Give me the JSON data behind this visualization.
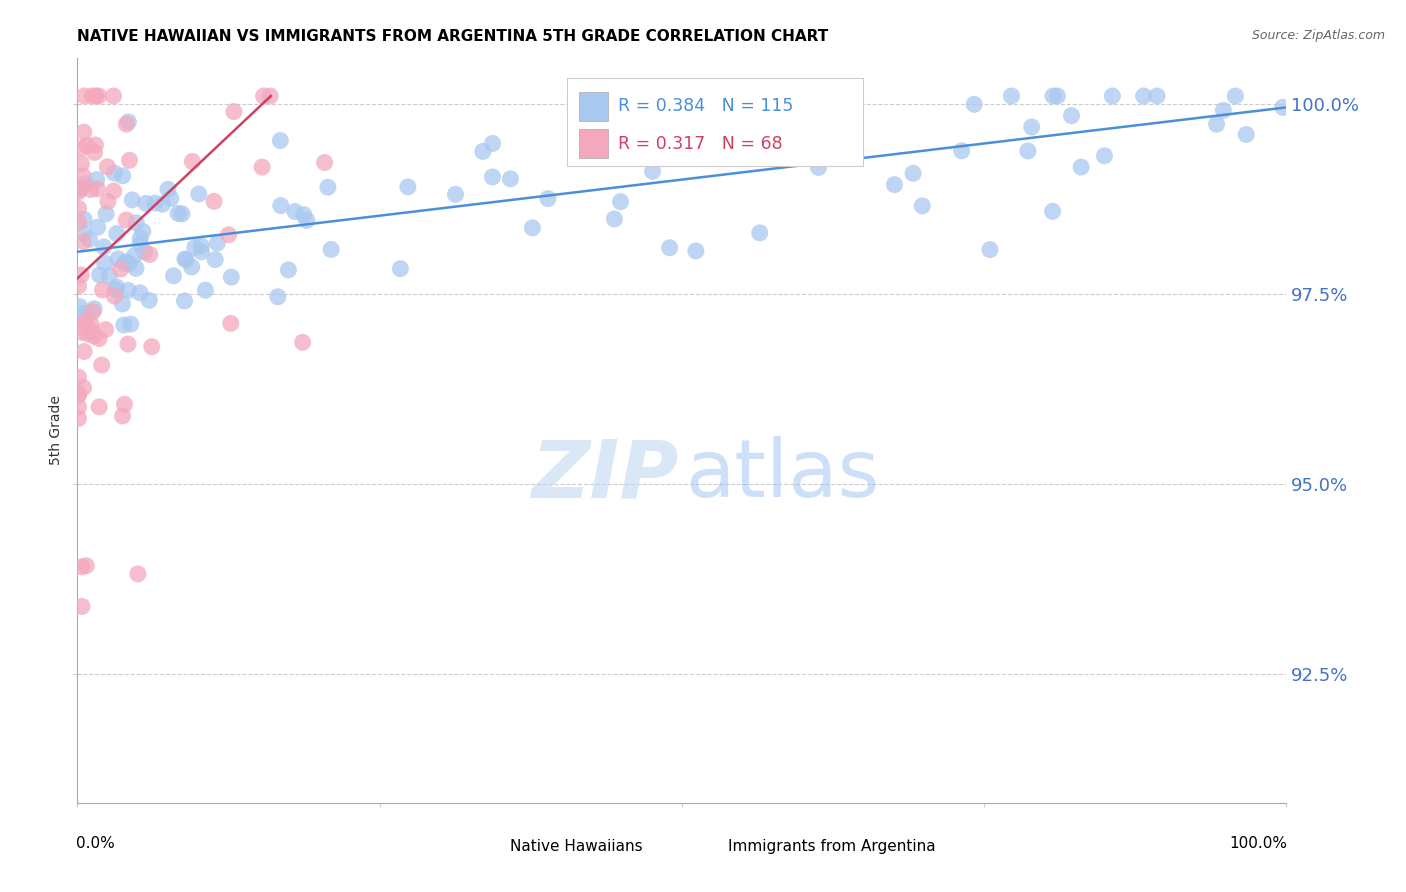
{
  "title": "NATIVE HAWAIIAN VS IMMIGRANTS FROM ARGENTINA 5TH GRADE CORRELATION CHART",
  "source": "Source: ZipAtlas.com",
  "ylabel": "5th Grade",
  "ytick_labels": [
    "92.5%",
    "95.0%",
    "97.5%",
    "100.0%"
  ],
  "ytick_values": [
    0.925,
    0.95,
    0.975,
    1.0
  ],
  "xmin": 0.0,
  "xmax": 1.0,
  "ymin": 0.908,
  "ymax": 1.006,
  "blue_R": 0.384,
  "blue_N": 115,
  "pink_R": 0.317,
  "pink_N": 68,
  "blue_color": "#A8C8F0",
  "pink_color": "#F4A8BC",
  "blue_line_color": "#4A90D9",
  "pink_line_color": "#D04060",
  "legend_label_blue": "Native Hawaiians",
  "legend_label_pink": "Immigrants from Argentina",
  "title_fontsize": 11,
  "source_fontsize": 9,
  "blue_line_x0": 0.0,
  "blue_line_x1": 1.0,
  "blue_line_y0": 0.9805,
  "blue_line_y1": 0.9995,
  "pink_line_x0": 0.0,
  "pink_line_x1": 0.16,
  "pink_line_y0": 0.977,
  "pink_line_y1": 1.001
}
